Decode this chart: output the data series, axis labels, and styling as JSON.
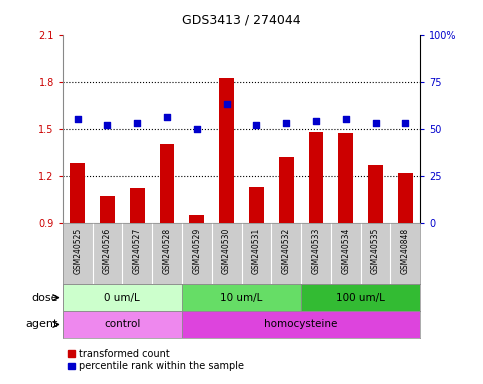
{
  "title": "GDS3413 / 274044",
  "samples": [
    "GSM240525",
    "GSM240526",
    "GSM240527",
    "GSM240528",
    "GSM240529",
    "GSM240530",
    "GSM240531",
    "GSM240532",
    "GSM240533",
    "GSM240534",
    "GSM240535",
    "GSM240848"
  ],
  "bar_values": [
    1.28,
    1.07,
    1.12,
    1.4,
    0.95,
    1.82,
    1.13,
    1.32,
    1.48,
    1.47,
    1.27,
    1.22
  ],
  "scatter_values": [
    55,
    52,
    53,
    56,
    50,
    63,
    52,
    53,
    54,
    55,
    53,
    53
  ],
  "bar_color": "#cc0000",
  "scatter_color": "#0000cc",
  "ylim_left": [
    0.9,
    2.1
  ],
  "ylim_right": [
    0,
    100
  ],
  "yticks_left": [
    0.9,
    1.2,
    1.5,
    1.8,
    2.1
  ],
  "yticks_right": [
    0,
    25,
    50,
    75,
    100
  ],
  "ytick_labels_left": [
    "0.9",
    "1.2",
    "1.5",
    "1.8",
    "2.1"
  ],
  "ytick_labels_right": [
    "0",
    "25",
    "50",
    "75",
    "100%"
  ],
  "hlines": [
    1.2,
    1.5,
    1.8
  ],
  "dose_groups": [
    {
      "label": "0 um/L",
      "start": 0,
      "end": 4,
      "color": "#ccffcc"
    },
    {
      "label": "10 um/L",
      "start": 4,
      "end": 8,
      "color": "#66dd66"
    },
    {
      "label": "100 um/L",
      "start": 8,
      "end": 12,
      "color": "#33bb33"
    }
  ],
  "agent_groups": [
    {
      "label": "control",
      "start": 0,
      "end": 4,
      "color": "#ee88ee"
    },
    {
      "label": "homocysteine",
      "start": 4,
      "end": 12,
      "color": "#dd44dd"
    }
  ],
  "dose_label": "dose",
  "agent_label": "agent",
  "legend_bar": "transformed count",
  "legend_scatter": "percentile rank within the sample",
  "background_color": "#ffffff",
  "sample_area_color": "#cccccc",
  "border_color": "#888888"
}
